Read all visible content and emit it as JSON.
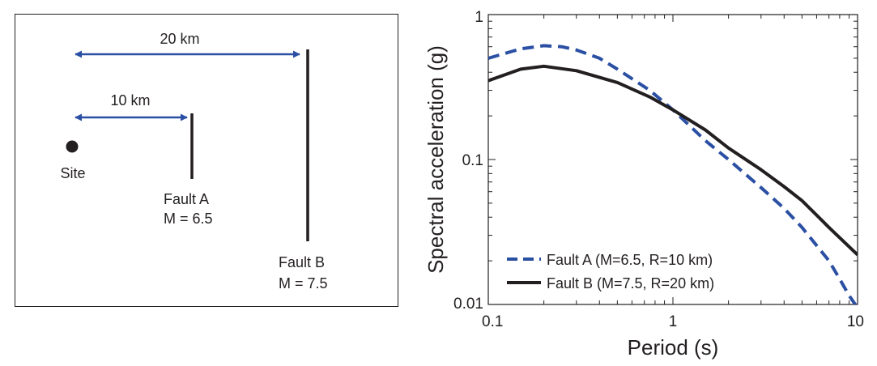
{
  "map": {
    "site_label": "Site",
    "dist_a_label": "10 km",
    "dist_b_label": "20 km",
    "fault_a": {
      "name": "Fault A",
      "magnitude": "M = 6.5"
    },
    "fault_b": {
      "name": "Fault B",
      "magnitude": "M = 7.5"
    },
    "colors": {
      "arrow": "#2a4fa3",
      "fault": "#231f20"
    }
  },
  "chart_data": {
    "type": "line",
    "xlabel": "Period (s)",
    "ylabel": "Spectral acceleration (g)",
    "x_scale": "log",
    "y_scale": "log",
    "xlim": [
      0.1,
      10
    ],
    "ylim": [
      0.01,
      1
    ],
    "x_ticks": [
      "0.1",
      "1",
      "10"
    ],
    "y_ticks": [
      "0.01",
      "0.1",
      "1"
    ],
    "legend_position": "bottom-left",
    "series": [
      {
        "name": "Fault A (M=6.5, R=10 km)",
        "style": "dashed",
        "color": "#2a4fa3",
        "points": [
          [
            0.1,
            0.5
          ],
          [
            0.15,
            0.58
          ],
          [
            0.2,
            0.61
          ],
          [
            0.25,
            0.6
          ],
          [
            0.3,
            0.57
          ],
          [
            0.4,
            0.5
          ],
          [
            0.5,
            0.42
          ],
          [
            0.75,
            0.3
          ],
          [
            1,
            0.22
          ],
          [
            1.5,
            0.135
          ],
          [
            2,
            0.1
          ],
          [
            3,
            0.064
          ],
          [
            4,
            0.046
          ],
          [
            5,
            0.034
          ],
          [
            7,
            0.02
          ],
          [
            8,
            0.015
          ],
          [
            9,
            0.0115
          ],
          [
            10,
            0.0095
          ]
        ]
      },
      {
        "name": "Fault B (M=7.5, R=20 km)",
        "style": "solid",
        "color": "#231f20",
        "points": [
          [
            0.1,
            0.35
          ],
          [
            0.15,
            0.42
          ],
          [
            0.2,
            0.44
          ],
          [
            0.3,
            0.41
          ],
          [
            0.5,
            0.34
          ],
          [
            0.75,
            0.27
          ],
          [
            1,
            0.22
          ],
          [
            1.5,
            0.16
          ],
          [
            2,
            0.12
          ],
          [
            3,
            0.085
          ],
          [
            4,
            0.065
          ],
          [
            5,
            0.052
          ],
          [
            7,
            0.034
          ],
          [
            10,
            0.022
          ]
        ]
      }
    ]
  }
}
